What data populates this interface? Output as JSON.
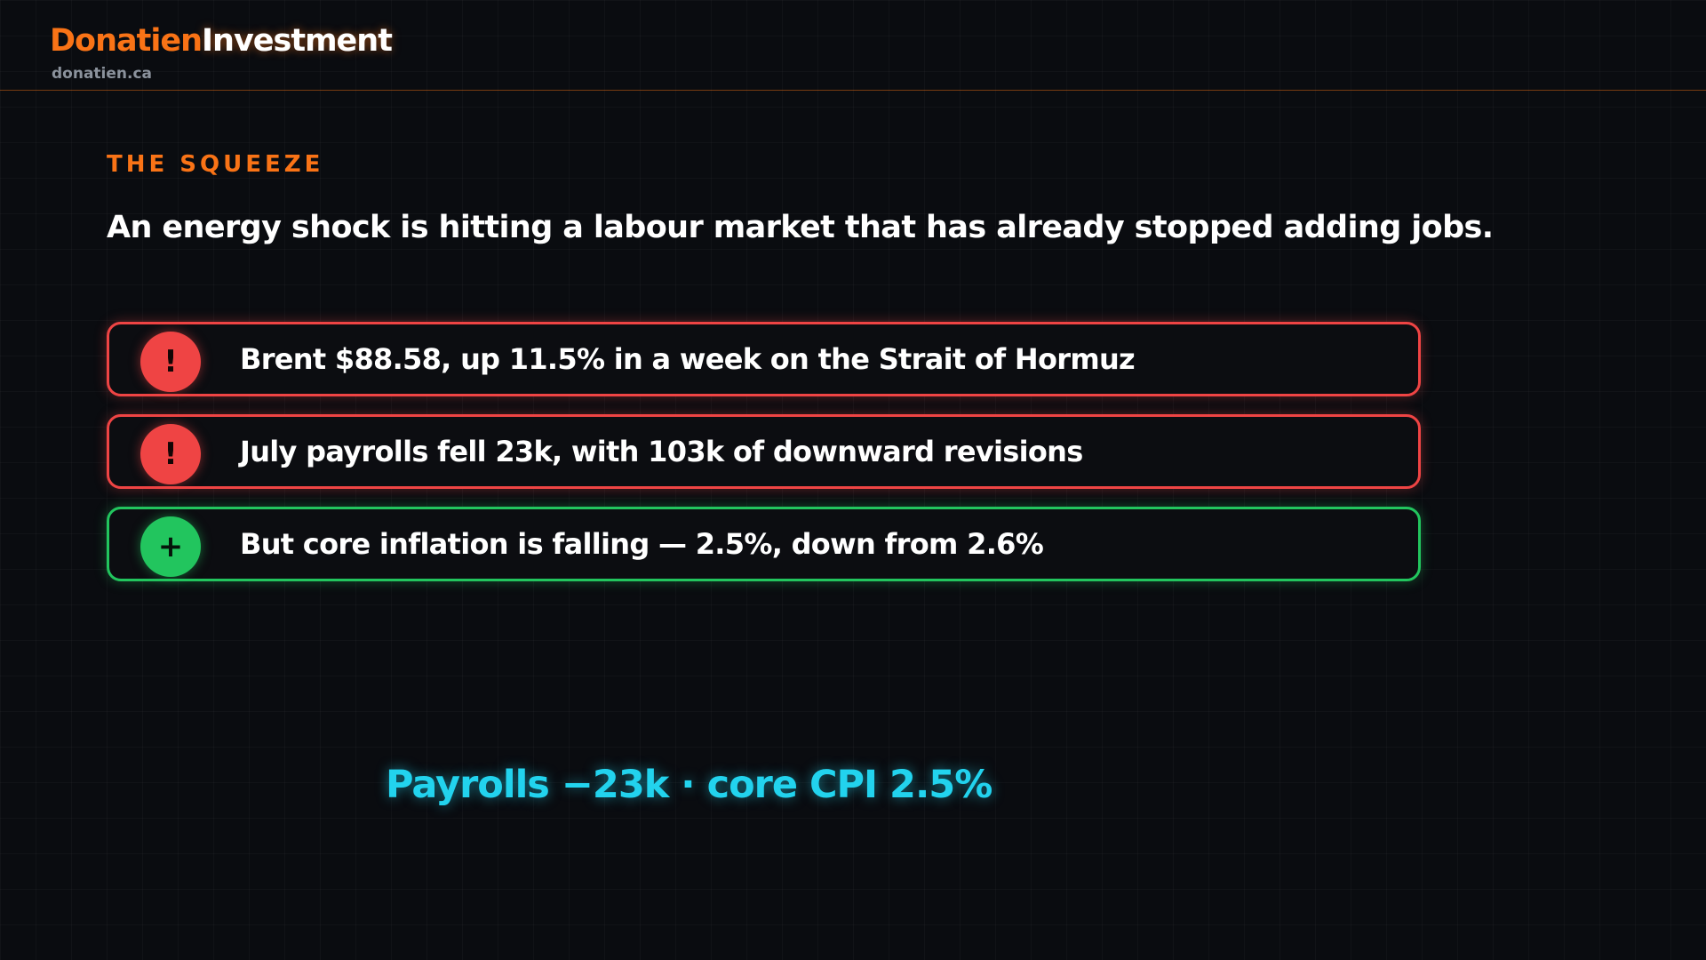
{
  "brand": {
    "name_part1": "Donatien",
    "name_part2": "Investment",
    "domain": "donatien.ca",
    "accent_color": "#f97316"
  },
  "eyebrow": "THE SQUEEZE",
  "headline": "An energy shock is hitting a labour market that has already stopped adding jobs.",
  "points": [
    {
      "tone": "negative",
      "icon": "exclamation-icon",
      "glyph": "!",
      "color": "#ef4444",
      "text": "Brent $88.58, up 11.5% in a week on the Strait of Hormuz"
    },
    {
      "tone": "negative",
      "icon": "exclamation-icon",
      "glyph": "!",
      "color": "#ef4444",
      "text": "July payrolls fell 23k, with 103k of downward revisions"
    },
    {
      "tone": "positive",
      "icon": "plus-icon",
      "glyph": "+",
      "color": "#22c55e",
      "text": "But core inflation is falling — 2.5%, down from 2.6%"
    }
  ],
  "footer_stat": "Payrolls −23k · core CPI 2.5%",
  "footer_color": "#22d3ee"
}
